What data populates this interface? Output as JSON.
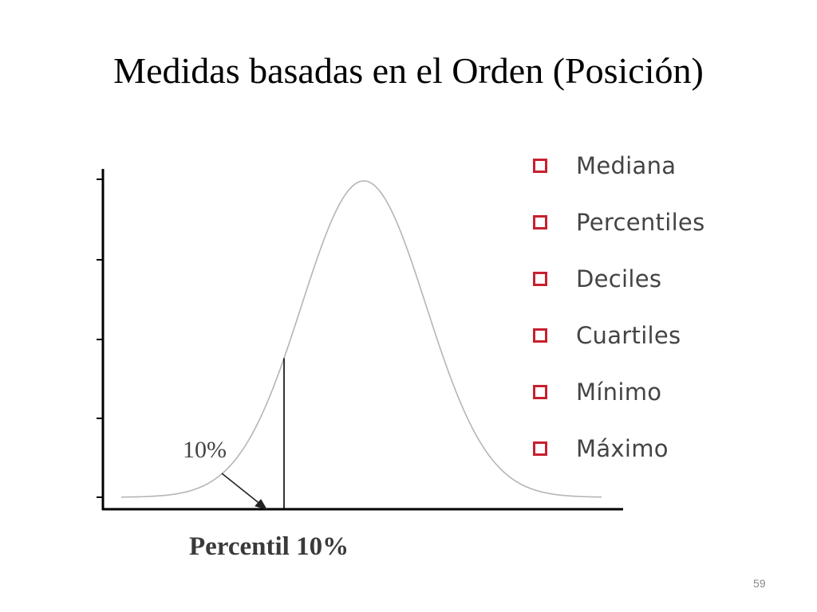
{
  "slide": {
    "title": "Medidas basadas en el Orden (Posición)",
    "page_number": "59"
  },
  "figure": {
    "percent_label": "10%",
    "caption": "Percentil 10%",
    "percentile_marker": 10
  },
  "bullets": [
    {
      "label": "Mediana"
    },
    {
      "label": "Percentiles"
    },
    {
      "label": "Deciles"
    },
    {
      "label": "Cuartiles"
    },
    {
      "label": "Mínimo"
    },
    {
      "label": "Máximo"
    }
  ],
  "colors": {
    "bullet_box": "#c8202f",
    "bullet_text": "#444444",
    "curve": "#b5b5b5",
    "axis": "#000000"
  },
  "icons": {
    "bullet": "hollow-square-icon",
    "pointer": "arrow-icon"
  }
}
